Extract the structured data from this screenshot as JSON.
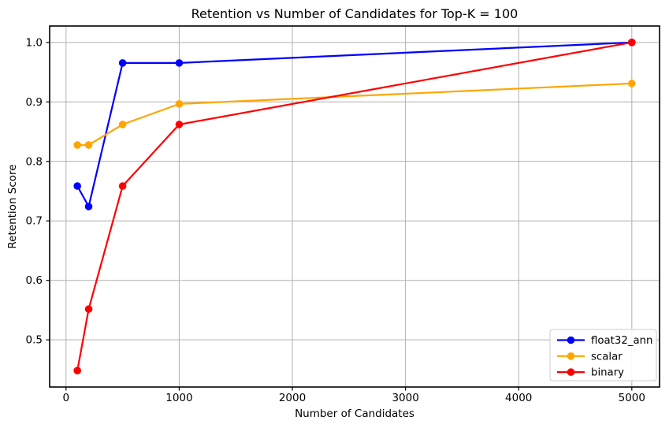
{
  "figure": {
    "background": "#ffffff",
    "grid_color": "#b0b0b0",
    "spine_color": "#000000",
    "tick_color": "#000000",
    "text_color": "#000000",
    "legend_background": "#ffffff",
    "legend_border_color": "#cccccc"
  },
  "chart_data": {
    "type": "line",
    "title": "Retention vs Number of Candidates for Top-K = 100",
    "xlabel": "Number of Candidates",
    "ylabel": "Retention Score",
    "x": [
      100,
      200,
      500,
      1000,
      5000
    ],
    "series": [
      {
        "name": "float32_ann",
        "color": "#0000ff",
        "values": [
          0.7586,
          0.7241,
          0.9655,
          0.9655,
          1.0
        ]
      },
      {
        "name": "scalar",
        "color": "#ffa500",
        "values": [
          0.8276,
          0.8276,
          0.8621,
          0.8966,
          0.931
        ]
      },
      {
        "name": "binary",
        "color": "#ff0000",
        "values": [
          0.4483,
          0.5517,
          0.7586,
          0.8621,
          1.0
        ]
      }
    ],
    "xlim": [
      -145,
      5245
    ],
    "ylim": [
      0.4207,
      1.0276
    ],
    "x_ticks": [
      0,
      1000,
      2000,
      3000,
      4000,
      5000
    ],
    "x_tick_labels": [
      "0",
      "1000",
      "2000",
      "3000",
      "4000",
      "5000"
    ],
    "y_ticks": [
      0.5,
      0.6,
      0.7,
      0.8,
      0.9,
      1.0
    ],
    "y_tick_labels": [
      "0.5",
      "0.6",
      "0.7",
      "0.8",
      "0.9",
      "1.0"
    ],
    "grid": true,
    "marker": "o",
    "legend_position": "lower right",
    "legend_labels": [
      "float32_ann",
      "scalar",
      "binary"
    ]
  }
}
